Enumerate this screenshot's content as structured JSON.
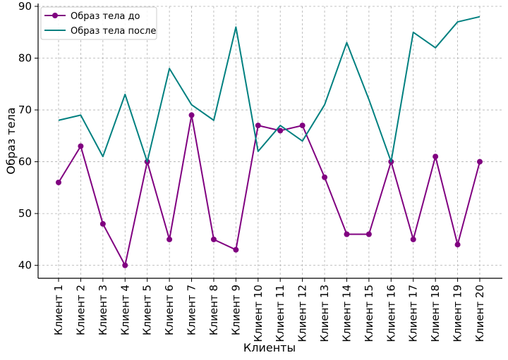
{
  "chart_data": {
    "type": "line",
    "title": "",
    "xlabel": "Клиенты",
    "ylabel": "Образ тела",
    "categories": [
      "Клиент 1",
      "Клиент 2",
      "Клиент 3",
      "Клиент 4",
      "Клиент 5",
      "Клиент 6",
      "Клиент 7",
      "Клиент 8",
      "Клиент 9",
      "Клиент 10",
      "Клиент 11",
      "Клиент 12",
      "Клиент 13",
      "Клиент 14",
      "Клиент 15",
      "Клиент 16",
      "Клиент 17",
      "Клиент 18",
      "Клиент 19",
      "Клиент 20"
    ],
    "ylim": [
      37.5,
      90
    ],
    "yticks": [
      40,
      50,
      60,
      70,
      80,
      90
    ],
    "grid": true,
    "legend_position": "top-left",
    "series": [
      {
        "name": "Образ тела до",
        "color": "#800080",
        "marker": "circle",
        "values": [
          56,
          63,
          48,
          40,
          60,
          45,
          69,
          45,
          43,
          67,
          66,
          67,
          57,
          46,
          46,
          60,
          45,
          61,
          44,
          60
        ]
      },
      {
        "name": "Образ тела после",
        "color": "#008080",
        "marker": "none",
        "values": [
          68,
          69,
          61,
          73,
          60,
          78,
          71,
          68,
          86,
          62,
          67,
          64,
          71,
          83,
          72,
          60,
          85,
          82,
          87,
          88
        ]
      }
    ]
  }
}
